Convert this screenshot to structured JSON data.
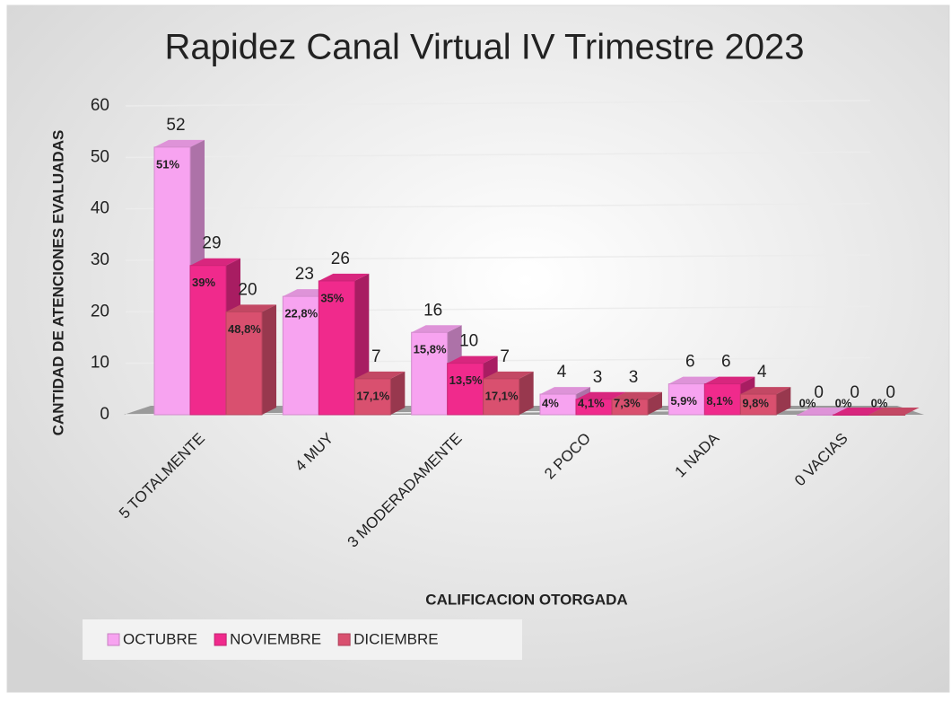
{
  "chart_data": {
    "type": "bar3d",
    "title": "Rapidez Canal Virtual IV Trimestre 2023",
    "y_label": "CANTIDAD DE ATENCIONES EVALUADAS",
    "x_label": "CALIFICACION OTORGADA",
    "categories": [
      "5 TOTALMENTE",
      "4 MUY",
      "3 MODERADAMENTE",
      "2 POCO",
      "1 NADA",
      "0 VACIAS"
    ],
    "series": [
      {
        "name": "OCTUBRE",
        "color": "#f7a3f0",
        "values": [
          52,
          23,
          16,
          4,
          6,
          0
        ],
        "percent_labels": [
          "51%",
          "22,8%",
          "15,8%",
          "4%",
          "5,9%",
          "0%"
        ]
      },
      {
        "name": "NOVIEMBRE",
        "color": "#f02a8c",
        "values": [
          29,
          26,
          10,
          3,
          6,
          0
        ],
        "percent_labels": [
          "39%",
          "35%",
          "13,5%",
          "4,1%",
          "8,1%",
          "0%"
        ]
      },
      {
        "name": "DICIEMBRE",
        "color": "#d9506f",
        "values": [
          20,
          7,
          7,
          3,
          4,
          0
        ],
        "percent_labels": [
          "48,8%",
          "17,1%",
          "17,1%",
          "7,3%",
          "9,8%",
          "0%"
        ]
      }
    ],
    "ylim": [
      0,
      60
    ],
    "yticks": [
      0,
      10,
      20,
      30,
      40,
      50,
      60
    ],
    "grid": true,
    "legend": "bottom"
  }
}
